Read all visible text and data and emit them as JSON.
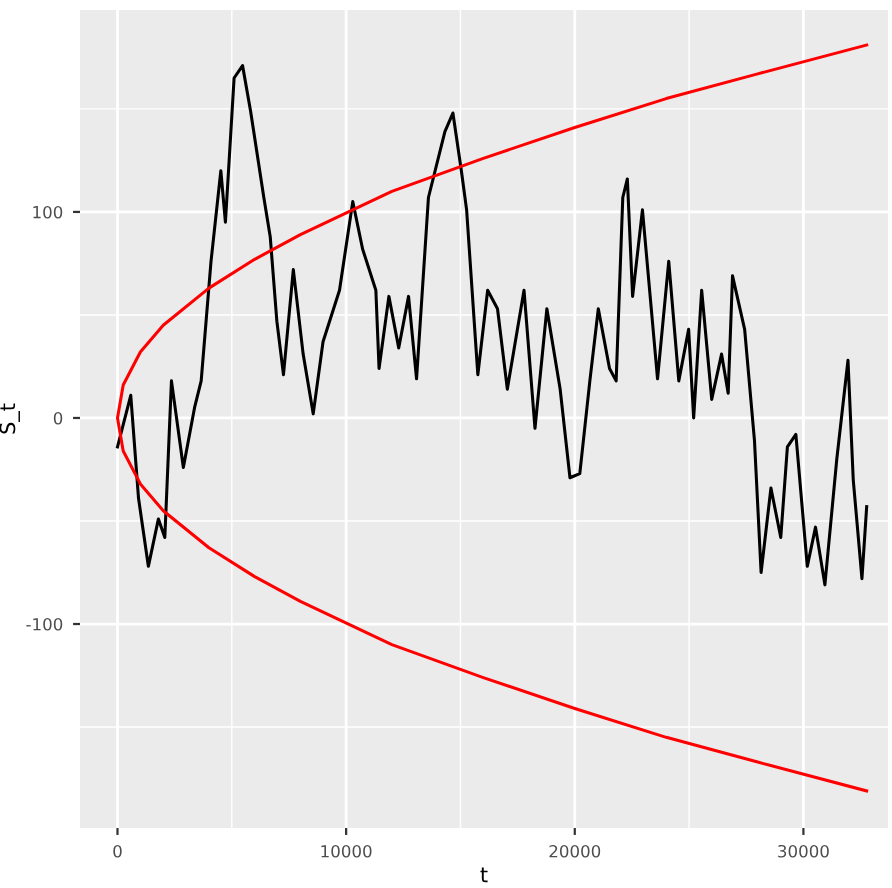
{
  "chart_data": {
    "type": "line",
    "xlabel": "t",
    "ylabel": "S_t",
    "xlim": [
      -1640,
      33700
    ],
    "ylim": [
      -199,
      198
    ],
    "xticks": [
      0,
      10000,
      20000,
      30000
    ],
    "yticks": [
      -100,
      0,
      100
    ],
    "grid": true,
    "series": [
      {
        "color": "#000000",
        "x": [
          0,
          580,
          920,
          1350,
          1790,
          2070,
          2360,
          2880,
          3370,
          3660,
          4090,
          4520,
          4720,
          5100,
          5470,
          5820,
          6400,
          6680,
          6970,
          7260,
          7690,
          8120,
          8560,
          8990,
          9710,
          10290,
          10720,
          11300,
          11440,
          11870,
          12300,
          12730,
          13080,
          13600,
          14320,
          14670,
          15040,
          15270,
          15760,
          16190,
          16620,
          17050,
          17780,
          18260,
          18780,
          19360,
          19790,
          20220,
          20660,
          21030,
          21520,
          21810,
          22100,
          22300,
          22530,
          22960,
          23620,
          24110,
          24550,
          24980,
          25200,
          25550,
          25990,
          26420,
          26710,
          26900,
          27430,
          27860,
          28150,
          28580,
          29010,
          29300,
          29670,
          30170,
          30530,
          30940,
          31460,
          31950,
          32180,
          32560,
          32768
        ],
        "values": [
          -14,
          11,
          -39,
          -72,
          -49,
          -58,
          18,
          -24,
          5,
          18,
          76,
          120,
          95,
          165,
          171,
          149,
          107,
          88,
          47,
          21,
          72,
          31,
          2,
          37,
          62,
          105,
          82,
          62,
          24,
          59,
          34,
          59,
          19,
          107,
          139,
          148,
          120,
          101,
          21,
          62,
          53,
          14,
          62,
          -5,
          53,
          14,
          -29,
          -27,
          18,
          53,
          24,
          18,
          107,
          116,
          59,
          101,
          19,
          76,
          18,
          43,
          0,
          62,
          9,
          31,
          12,
          69,
          43,
          -11,
          -75,
          -34,
          -58,
          -14,
          -8,
          -72,
          -53,
          -81,
          -20,
          28,
          -30,
          -78,
          -43
        ]
      },
      {
        "color": "#ff0000",
        "x": [
          32768,
          28000,
          24000,
          20000,
          16000,
          12000,
          8000,
          6000,
          4000,
          2000,
          1000,
          250,
          0,
          250,
          1000,
          2000,
          4000,
          6000,
          8000,
          12000,
          16000,
          20000,
          24000,
          28000,
          32768
        ],
        "values": [
          -181,
          -167,
          -155,
          -141,
          -126,
          -110,
          -89,
          -77,
          -63,
          -45,
          -32,
          -16,
          0,
          16,
          32,
          45,
          63,
          77,
          89,
          110,
          126,
          141,
          155,
          167,
          181
        ]
      }
    ]
  }
}
